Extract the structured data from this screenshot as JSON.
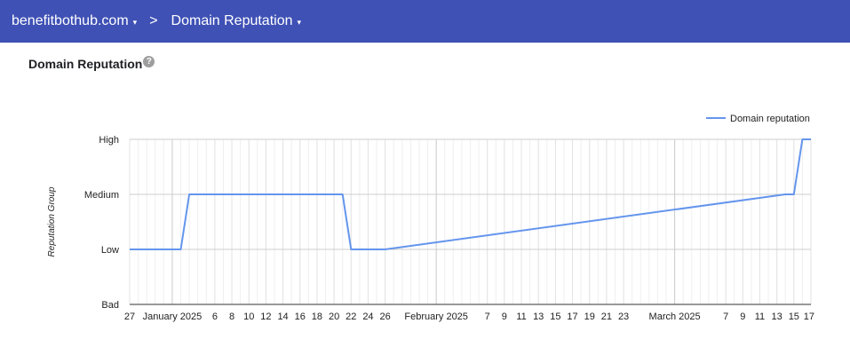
{
  "header": {
    "domain_label": "benefitbothub.com",
    "separator": ">",
    "section_label": "Domain Reputation",
    "caret": "▾"
  },
  "page": {
    "title": "Domain Reputation",
    "help_glyph": "?"
  },
  "chart_data": {
    "type": "line",
    "title": "",
    "xlabel": "",
    "ylabel": "Reputation Group",
    "categories_y": [
      "Bad",
      "Low",
      "Medium",
      "High"
    ],
    "x_range": [
      "2024-12-27",
      "2025-03-17"
    ],
    "x_tick_labels": [
      {
        "date": "2024-12-27",
        "label": "27"
      },
      {
        "date": "2025-01-01",
        "label": "January 2025"
      },
      {
        "date": "2025-01-06",
        "label": "6"
      },
      {
        "date": "2025-01-08",
        "label": "8"
      },
      {
        "date": "2025-01-10",
        "label": "10"
      },
      {
        "date": "2025-01-12",
        "label": "12"
      },
      {
        "date": "2025-01-14",
        "label": "14"
      },
      {
        "date": "2025-01-16",
        "label": "16"
      },
      {
        "date": "2025-01-18",
        "label": "18"
      },
      {
        "date": "2025-01-20",
        "label": "20"
      },
      {
        "date": "2025-01-22",
        "label": "22"
      },
      {
        "date": "2025-01-24",
        "label": "24"
      },
      {
        "date": "2025-01-26",
        "label": "26"
      },
      {
        "date": "2025-02-01",
        "label": "February 2025"
      },
      {
        "date": "2025-02-07",
        "label": "7"
      },
      {
        "date": "2025-02-09",
        "label": "9"
      },
      {
        "date": "2025-02-11",
        "label": "11"
      },
      {
        "date": "2025-02-13",
        "label": "13"
      },
      {
        "date": "2025-02-15",
        "label": "15"
      },
      {
        "date": "2025-02-17",
        "label": "17"
      },
      {
        "date": "2025-02-19",
        "label": "19"
      },
      {
        "date": "2025-02-21",
        "label": "21"
      },
      {
        "date": "2025-02-23",
        "label": "23"
      },
      {
        "date": "2025-03-01",
        "label": "March 2025"
      },
      {
        "date": "2025-03-07",
        "label": "7"
      },
      {
        "date": "2025-03-09",
        "label": "9"
      },
      {
        "date": "2025-03-11",
        "label": "11"
      },
      {
        "date": "2025-03-13",
        "label": "13"
      },
      {
        "date": "2025-03-15",
        "label": "15"
      },
      {
        "date": "2025-03-17",
        "label": "17"
      }
    ],
    "series": [
      {
        "name": "Domain reputation",
        "color": "#6495ed",
        "points": [
          {
            "x": "2024-12-27",
            "y": "Low"
          },
          {
            "x": "2025-01-02",
            "y": "Low"
          },
          {
            "x": "2025-01-03",
            "y": "Medium"
          },
          {
            "x": "2025-01-21",
            "y": "Medium"
          },
          {
            "x": "2025-01-22",
            "y": "Low"
          },
          {
            "x": "2025-01-26",
            "y": "Low"
          },
          {
            "x": "2025-03-14",
            "y": "Medium"
          },
          {
            "x": "2025-03-15",
            "y": "Medium"
          },
          {
            "x": "2025-03-16",
            "y": "High"
          },
          {
            "x": "2025-03-17",
            "y": "High"
          }
        ]
      }
    ],
    "grid": true,
    "legend": "top-right"
  }
}
